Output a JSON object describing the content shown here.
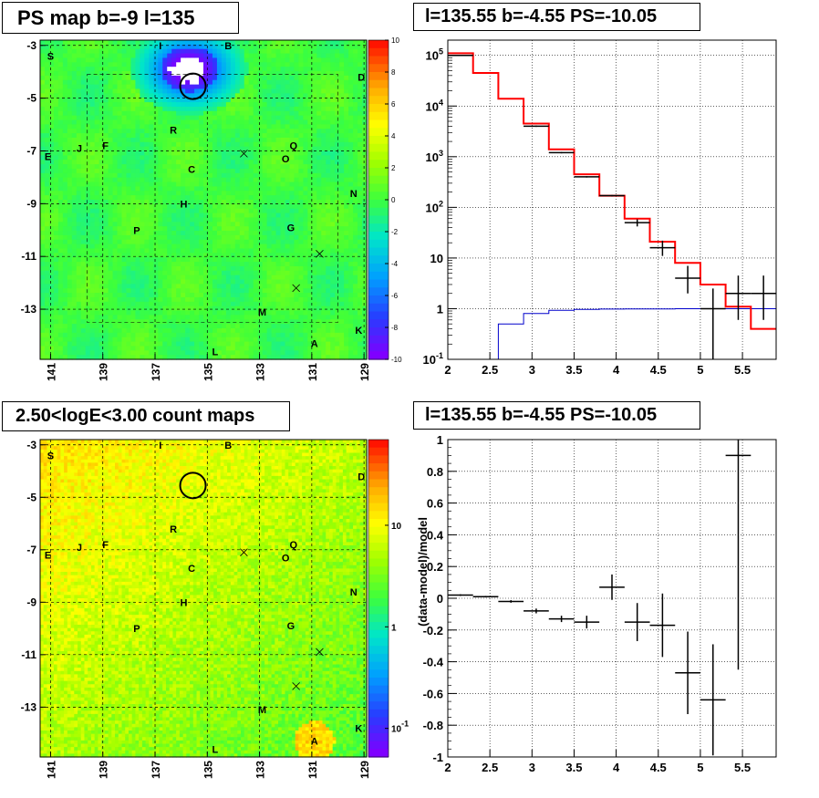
{
  "panels": {
    "ps_map_title": "PS map b=-9 l=135",
    "count_map_title": "2.50<logE<3.00 count maps",
    "spectrum_title": "l=135.55 b=-4.55 PS=-10.05",
    "residual_title": "l=135.55 b=-4.55 PS=-10.05"
  },
  "map_axes": {
    "x_ticks": [
      "141",
      "139",
      "137",
      "135",
      "133",
      "131",
      "129"
    ],
    "y_ticks": [
      "-3",
      "-5",
      "-7",
      "-9",
      "-11",
      "-13"
    ]
  },
  "map_labels": [
    {
      "t": "S",
      "l": 141,
      "b": -3.4
    },
    {
      "t": "I",
      "l": 136.8,
      "b": -3.0
    },
    {
      "t": "B",
      "l": 134.2,
      "b": -3.0
    },
    {
      "t": "D",
      "l": 129.1,
      "b": -4.2
    },
    {
      "t": "R",
      "l": 136.3,
      "b": -6.2
    },
    {
      "t": "E",
      "l": 141.1,
      "b": -7.2
    },
    {
      "t": "J",
      "l": 139.9,
      "b": -6.9
    },
    {
      "t": "F",
      "l": 138.9,
      "b": -6.8
    },
    {
      "t": "Q",
      "l": 131.7,
      "b": -6.8
    },
    {
      "t": "O",
      "l": 132.0,
      "b": -7.3
    },
    {
      "t": "C",
      "l": 135.6,
      "b": -7.7
    },
    {
      "t": "N",
      "l": 129.4,
      "b": -8.6
    },
    {
      "t": "H",
      "l": 135.9,
      "b": -9.0
    },
    {
      "t": "P",
      "l": 137.7,
      "b": -10.0
    },
    {
      "t": "G",
      "l": 131.8,
      "b": -9.9
    },
    {
      "t": "M",
      "l": 132.9,
      "b": -13.1
    },
    {
      "t": "K",
      "l": 129.2,
      "b": -13.8
    },
    {
      "t": "A",
      "l": 130.9,
      "b": -14.3
    },
    {
      "t": "L",
      "l": 134.7,
      "b": -14.6
    }
  ],
  "map_crosses": [
    {
      "l": 133.6,
      "b": -7.1
    },
    {
      "l": 130.7,
      "b": -10.9
    },
    {
      "l": 131.6,
      "b": -12.2
    }
  ],
  "circle_source": {
    "l": 135.55,
    "b": -4.55
  },
  "ps_colorbar": {
    "ticks": [
      "10",
      "8",
      "6",
      "4",
      "2",
      "0",
      "-2",
      "-4",
      "-6",
      "-8",
      "-10"
    ],
    "colors": [
      "#7f00ff",
      "#3b3bff",
      "#00a0ff",
      "#00e0d0",
      "#40ff40",
      "#9fff00",
      "#ffff00",
      "#ffc000",
      "#ff8000",
      "#ff2000"
    ]
  },
  "count_colorbar": {
    "ticks": [
      "10",
      "1",
      "10^-1"
    ],
    "colors": [
      "#7f00ff",
      "#3b3bff",
      "#00a0ff",
      "#00e0d0",
      "#40ff40",
      "#9fff00",
      "#ffff00",
      "#ffc000",
      "#ff8000",
      "#ff2000"
    ]
  },
  "chart_data": [
    {
      "type": "line",
      "title": "l=135.55 b=-4.55 PS=-10.05",
      "xlabel": "",
      "ylabel": "",
      "xlim": [
        2.0,
        5.9
      ],
      "ylim": [
        0.1,
        200000
      ],
      "yscale": "log",
      "x_ticks": [
        "2",
        "2.5",
        "3",
        "3.5",
        "4",
        "4.5",
        "5",
        "5.5"
      ],
      "y_ticks": [
        "10^-1",
        "1",
        "10",
        "10^2",
        "10^3",
        "10^4",
        "10^5"
      ],
      "grid": true,
      "data_points": [
        {
          "x": 2.15,
          "y": 100000,
          "xerr": 0.15
        },
        {
          "x": 3.05,
          "y": 4000,
          "xerr": 0.15
        },
        {
          "x": 3.35,
          "y": 1200,
          "xerr": 0.15
        },
        {
          "x": 3.65,
          "y": 400,
          "xerr": 0.15
        },
        {
          "x": 3.95,
          "y": 170,
          "xerr": 0.15
        },
        {
          "x": 4.25,
          "y": 50,
          "xerr": 0.15,
          "ylo": 42,
          "yhi": 58
        },
        {
          "x": 4.55,
          "y": 16,
          "xerr": 0.15,
          "ylo": 11,
          "yhi": 22
        },
        {
          "x": 4.85,
          "y": 4,
          "xerr": 0.15,
          "ylo": 2,
          "yhi": 7
        },
        {
          "x": 5.15,
          "y": 1,
          "xerr": 0.15,
          "ylo": 0.1,
          "yhi": 2.5
        },
        {
          "x": 5.45,
          "y": 2,
          "xerr": 0.15,
          "ylo": 0.6,
          "yhi": 4.5
        },
        {
          "x": 5.75,
          "y": 2,
          "xerr": 0.15,
          "ylo": 0.6,
          "yhi": 4.5
        }
      ],
      "model_total": {
        "color": "#ff0000",
        "edges": [
          2.0,
          2.3,
          2.6,
          2.9,
          3.2,
          3.5,
          3.8,
          4.1,
          4.4,
          4.7,
          5.0,
          5.3,
          5.6,
          5.9
        ],
        "values": [
          110000,
          45000,
          14000,
          4500,
          1400,
          450,
          170,
          60,
          21,
          8,
          3,
          1.1,
          0.4
        ]
      },
      "model_source": {
        "color": "#0000cc",
        "edges": [
          2.0,
          2.3,
          2.6,
          2.9,
          3.2,
          3.5,
          3.8,
          4.1,
          4.4,
          4.7,
          5.0,
          5.3,
          5.6,
          5.9
        ],
        "values": [
          0.05,
          0.05,
          0.5,
          0.8,
          0.93,
          0.97,
          0.98,
          0.99,
          0.99,
          1.0,
          1.0,
          1.0,
          1.0
        ]
      }
    },
    {
      "type": "scatter",
      "title": "l=135.55 b=-4.55 PS=-10.05",
      "xlabel": "",
      "ylabel": "(data-model)/model",
      "xlim": [
        2.0,
        5.9
      ],
      "ylim": [
        -1,
        1
      ],
      "x_ticks": [
        "2",
        "2.5",
        "3",
        "3.5",
        "4",
        "4.5",
        "5",
        "5.5"
      ],
      "y_ticks": [
        "-1",
        "-0.8",
        "-0.6",
        "-0.4",
        "-0.2",
        "0",
        "0.2",
        "0.4",
        "0.6",
        "0.8",
        "1"
      ],
      "grid": true,
      "data_points": [
        {
          "x": 2.15,
          "y": 0.02,
          "xerr": 0.15,
          "yerr": 0.005
        },
        {
          "x": 2.45,
          "y": 0.01,
          "xerr": 0.15,
          "yerr": 0.005
        },
        {
          "x": 2.75,
          "y": -0.02,
          "xerr": 0.15,
          "yerr": 0.008
        },
        {
          "x": 3.05,
          "y": -0.08,
          "xerr": 0.15,
          "yerr": 0.015
        },
        {
          "x": 3.35,
          "y": -0.13,
          "xerr": 0.15,
          "yerr": 0.02
        },
        {
          "x": 3.65,
          "y": -0.15,
          "xerr": 0.15,
          "yerr": 0.04
        },
        {
          "x": 3.95,
          "y": 0.07,
          "xerr": 0.15,
          "yerr": 0.08
        },
        {
          "x": 4.25,
          "y": -0.15,
          "xerr": 0.15,
          "yerr": 0.12
        },
        {
          "x": 4.55,
          "y": -0.17,
          "xerr": 0.15,
          "yerr": 0.2
        },
        {
          "x": 4.85,
          "y": -0.47,
          "xerr": 0.15,
          "yerr": 0.26
        },
        {
          "x": 5.15,
          "y": -0.64,
          "xerr": 0.15,
          "yerr": 0.35
        },
        {
          "x": 5.45,
          "y": 0.9,
          "xerr": 0.15,
          "yerr": 1.35
        }
      ]
    }
  ]
}
